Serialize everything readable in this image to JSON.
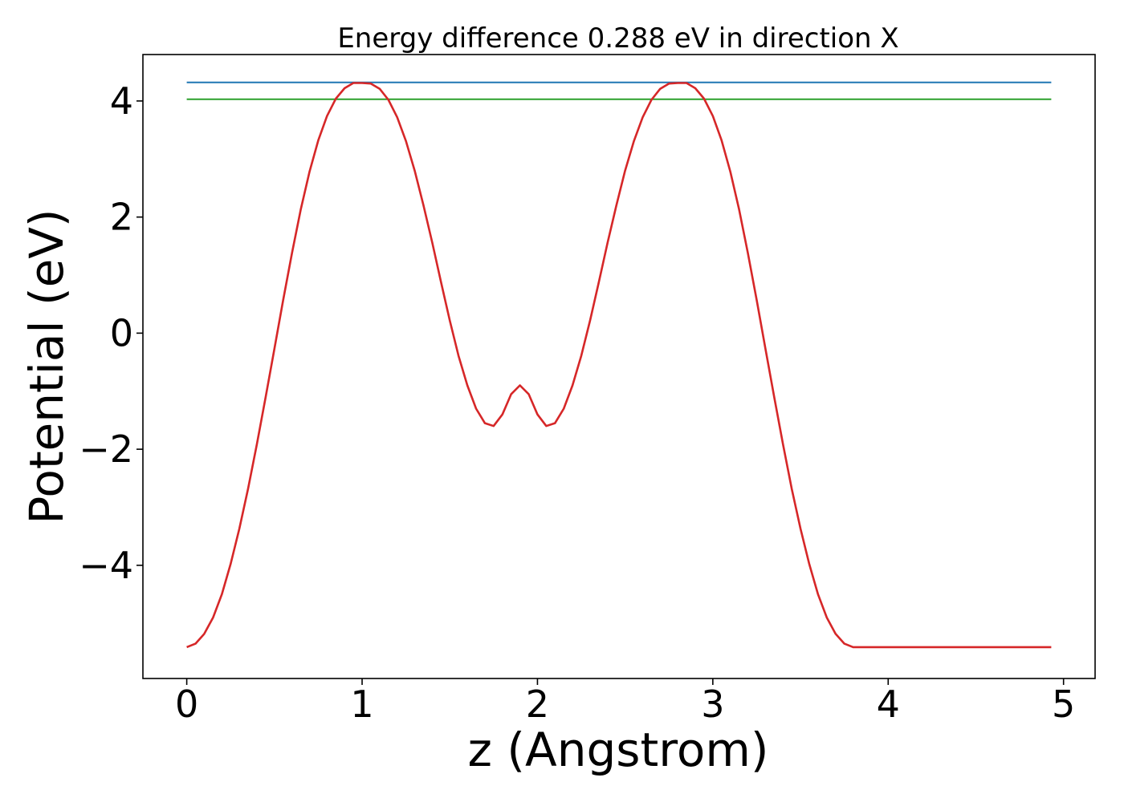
{
  "chart_data": {
    "type": "line",
    "title": "Energy difference 0.288 eV in direction X",
    "xlabel": "z (Angstrom)",
    "ylabel": "Potential (eV)",
    "xlim": [
      -0.25,
      5.18
    ],
    "ylim": [
      -5.95,
      4.8
    ],
    "xticks": [
      0,
      1,
      2,
      3,
      4,
      5
    ],
    "xtick_labels": [
      "0",
      "1",
      "2",
      "3",
      "4",
      "5"
    ],
    "yticks": [
      -4,
      -2,
      0,
      2,
      4
    ],
    "ytick_labels": [
      "−4",
      "−2",
      "0",
      "2",
      "4"
    ],
    "grid": false,
    "series": [
      {
        "color": "#d62728",
        "x": [
          0.0,
          0.05,
          0.1,
          0.15,
          0.2,
          0.25,
          0.3,
          0.35,
          0.4,
          0.45,
          0.5,
          0.55,
          0.6,
          0.65,
          0.7,
          0.75,
          0.8,
          0.85,
          0.9,
          0.95,
          1.0,
          1.05,
          1.1,
          1.15,
          1.2,
          1.25,
          1.3,
          1.35,
          1.4,
          1.45,
          1.5,
          1.55,
          1.6,
          1.65,
          1.7,
          1.75,
          1.8,
          1.85,
          1.9,
          1.95,
          2.0,
          2.05,
          2.1,
          2.15,
          2.2,
          2.25,
          2.3,
          2.35,
          2.4,
          2.45,
          2.5,
          2.55,
          2.6,
          2.65,
          2.7,
          2.75,
          2.8,
          2.85,
          2.9,
          2.95,
          3.0,
          3.05,
          3.1,
          3.15,
          3.2,
          3.25,
          3.3,
          3.35,
          3.4,
          3.45,
          3.5,
          3.55,
          3.6,
          3.65,
          3.7,
          3.75,
          3.8,
          3.85,
          3.9,
          3.95,
          4.0,
          4.05,
          4.1,
          4.15,
          4.2,
          4.25,
          4.3,
          4.35,
          4.4,
          4.45,
          4.5,
          4.55,
          4.6,
          4.65,
          4.7,
          4.75,
          4.8,
          4.85,
          4.9,
          4.93
        ],
        "y": [
          -5.41,
          -5.35,
          -5.18,
          -4.9,
          -4.5,
          -3.98,
          -3.37,
          -2.68,
          -1.91,
          -1.1,
          -0.27,
          0.57,
          1.38,
          2.13,
          2.78,
          3.32,
          3.74,
          4.04,
          4.22,
          4.31,
          4.31,
          4.3,
          4.21,
          4.02,
          3.72,
          3.31,
          2.8,
          2.2,
          1.56,
          0.88,
          0.22,
          -0.39,
          -0.9,
          -1.3,
          -1.55,
          -1.6,
          -1.4,
          -1.05,
          -0.9,
          -1.05,
          -1.4,
          -1.6,
          -1.55,
          -1.3,
          -0.9,
          -0.39,
          0.22,
          0.88,
          1.56,
          2.2,
          2.8,
          3.31,
          3.72,
          4.02,
          4.21,
          4.3,
          4.31,
          4.31,
          4.22,
          4.04,
          3.74,
          3.32,
          2.78,
          2.13,
          1.38,
          0.57,
          -0.27,
          -1.1,
          -1.91,
          -2.68,
          -3.37,
          -3.98,
          -4.5,
          -4.9,
          -5.18,
          -5.35,
          -5.41,
          -5.41,
          -5.41,
          -5.41,
          -5.41,
          -5.41,
          -5.41,
          -5.41,
          -5.41,
          -5.41,
          -5.41,
          -5.41,
          -5.41,
          -5.41,
          -5.41,
          -5.41,
          -5.41,
          -5.41,
          -5.41,
          -5.41,
          -5.41,
          -5.41,
          -5.41,
          -5.41
        ]
      },
      {
        "color": "#1f77b4",
        "x": [
          0.0,
          4.93
        ],
        "y": [
          4.32,
          4.32
        ]
      },
      {
        "color": "#2ca02c",
        "x": [
          0.0,
          4.93
        ],
        "y": [
          4.03,
          4.03
        ]
      }
    ]
  }
}
